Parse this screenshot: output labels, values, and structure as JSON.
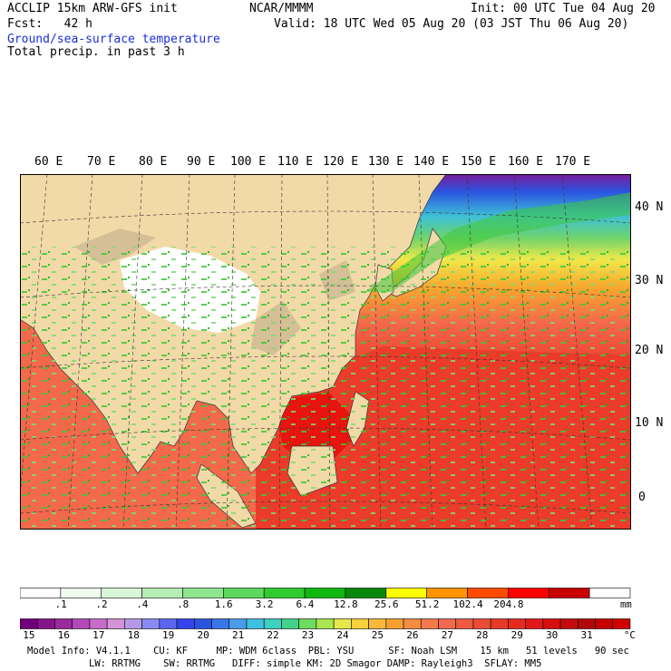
{
  "header": {
    "model_line": "ACCLIP 15km ARW-GFS init",
    "fcst_line": "Fcst:   42 h",
    "field1": "Ground/sea-surface temperature",
    "field2": "Total precip. in past 3 h",
    "org": "NCAR/MMMM",
    "init": "Init: 00 UTC Tue 04 Aug 20",
    "valid": "Valid: 18 UTC Wed 05 Aug 20 (03 JST Thu 06 Aug 20)"
  },
  "map": {
    "lon_labels": [
      "60 E",
      "70 E",
      "80 E",
      "90 E",
      "100 E",
      "110 E",
      "120 E",
      "130 E",
      "140 E",
      "150 E",
      "160 E",
      "170 E"
    ],
    "lat_labels": [
      "40 N",
      "30 N",
      "20 N",
      "10 N",
      "0"
    ],
    "colors": {
      "land": "#f2d9a8",
      "plateau": "#ffffff",
      "ocean_warm": "#ec3b2a",
      "ocean_hot": "#e8140f",
      "ocean_mild": "#f4684b",
      "ocean_cool": "#f7a72e",
      "ocean_yellow": "#f0e84a",
      "ocean_green": "#6fd36a",
      "ocean_cyan": "#3fc1d6",
      "ocean_blue": "#2a54e0",
      "ocean_purple": "#7a1a9a",
      "precip_green": "#3ec83a"
    }
  },
  "precip_scale": {
    "colors": [
      "#ffffff",
      "#f0fcf0",
      "#d8f6d8",
      "#b4eeb4",
      "#8ee68e",
      "#5cd85c",
      "#2fcb2f",
      "#0fb80f",
      "#088808",
      "#ffff00",
      "#ff9400",
      "#ff4a00",
      "#ff0000",
      "#c80000",
      "#ffffff"
    ],
    "labels": [
      ".1",
      ".2",
      ".4",
      ".8",
      "1.6",
      "3.2",
      "6.4",
      "12.8",
      "25.6",
      "51.2",
      "102.4",
      "204.8"
    ],
    "unit": "mm"
  },
  "sst_scale": {
    "colors": [
      "#70007a",
      "#84148a",
      "#9a2a9e",
      "#b24ab6",
      "#c86cca",
      "#d692d6",
      "#b49ae6",
      "#8a8af2",
      "#5c66f0",
      "#3444ea",
      "#2a54e0",
      "#3a76e8",
      "#4a9ce8",
      "#3ec0e0",
      "#3ed0c0",
      "#44d28a",
      "#6edc5e",
      "#a8e650",
      "#e6e84a",
      "#f7d23c",
      "#f8b83a",
      "#f7a030",
      "#f48c42",
      "#f47a4c",
      "#f06a50",
      "#ee5a40",
      "#ec4a34",
      "#e83a2a",
      "#e62a20",
      "#e21818",
      "#d60e0e",
      "#c40a0a",
      "#b00808",
      "#c40000",
      "#d00000"
    ],
    "labels": [
      "15",
      "16",
      "17",
      "18",
      "19",
      "20",
      "21",
      "22",
      "23",
      "24",
      "25",
      "26",
      "27",
      "28",
      "29",
      "30",
      "31"
    ],
    "unit": "°C"
  },
  "footer": {
    "line1": "Model Info: V4.1.1    CU: KF     MP: WDM 6class  PBL: YSU      SF: Noah LSM    15 km   51 levels   90 sec",
    "line2": "LW: RRTMG    SW: RRTMG   DIFF: simple KM: 2D Smagor DAMP: Rayleigh3  SFLAY: MM5"
  }
}
